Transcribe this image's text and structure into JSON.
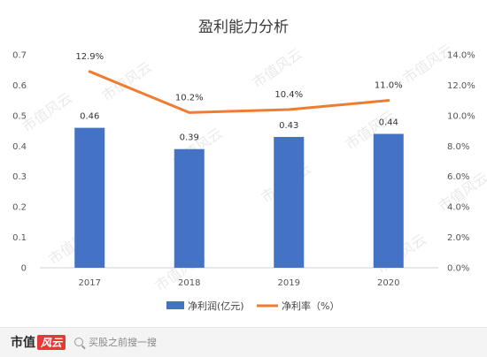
{
  "chart_data": {
    "type": "bar+line",
    "title": "盈利能力分析",
    "categories": [
      "2017",
      "2018",
      "2019",
      "2020"
    ],
    "series": [
      {
        "name": "净利润(亿元)",
        "type": "bar",
        "axis": "left",
        "values": [
          0.46,
          0.39,
          0.43,
          0.44
        ],
        "color": "#4472C4"
      },
      {
        "name": "净利率（%）",
        "type": "line",
        "axis": "right",
        "values": [
          12.9,
          10.2,
          10.4,
          11.0
        ],
        "labels": [
          "12.9%",
          "10.2%",
          "10.4%",
          "11.0%"
        ],
        "color": "#ED7D31"
      }
    ],
    "y_left": {
      "min": 0,
      "max": 0.7,
      "ticks": [
        "0",
        "0.1",
        "0.2",
        "0.3",
        "0.4",
        "0.5",
        "0.6",
        "0.7"
      ]
    },
    "y_right": {
      "min": 0,
      "max": 14,
      "ticks": [
        "0.0%",
        "2.0%",
        "4.0%",
        "6.0%",
        "8.0%",
        "10.0%",
        "12.0%",
        "14.0%"
      ]
    },
    "legend_position": "bottom",
    "grid": false
  },
  "watermark": "市值风云",
  "footer": {
    "brand": "市值",
    "brand_mark": "风云",
    "search_text": "买股之前搜一搜"
  }
}
